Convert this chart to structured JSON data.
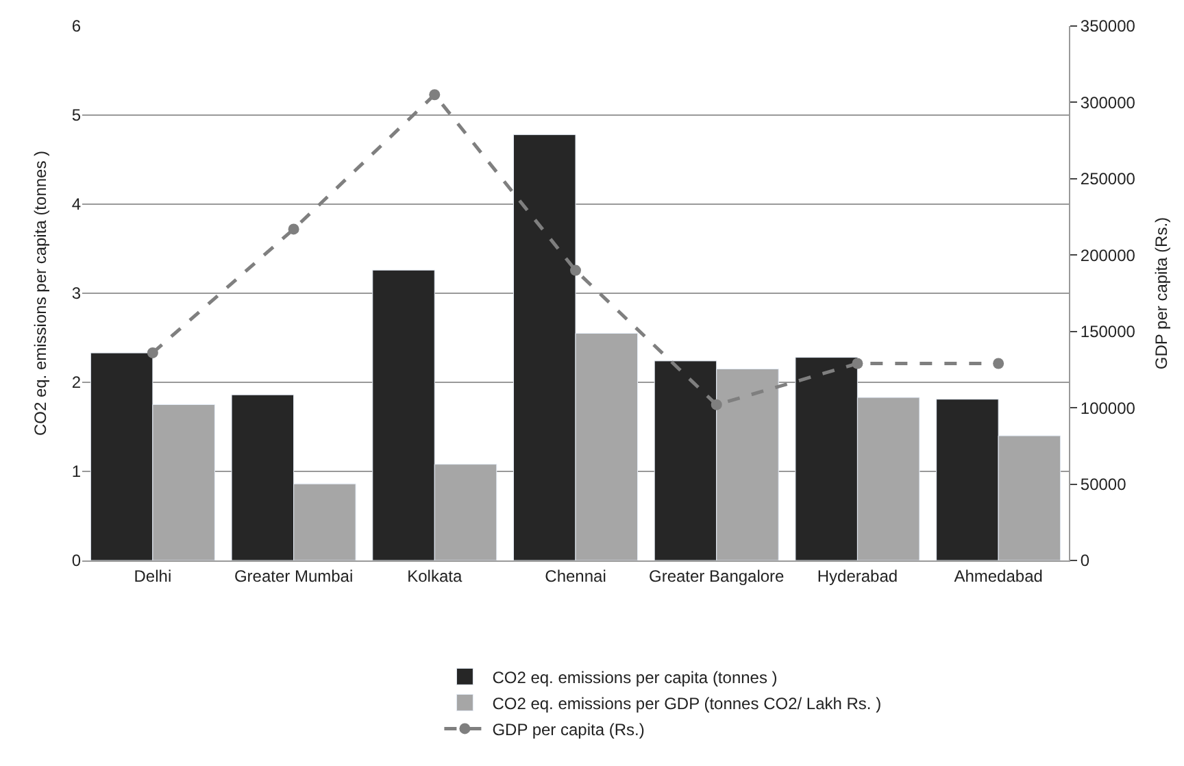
{
  "chart_data": {
    "type": "bar",
    "categories": [
      "Delhi",
      "Greater Mumbai",
      "Kolkata",
      "Chennai",
      "Greater Bangalore",
      "Hyderabad",
      "Ahmedabad"
    ],
    "ylabel": "CO2 eq. emissions per capita (tonnes )",
    "y2label": "GDP per capita (Rs.)",
    "ylim": [
      0,
      6
    ],
    "yticks": [
      0,
      1,
      2,
      3,
      4,
      5,
      6
    ],
    "y2lim": [
      0,
      350000
    ],
    "y2ticks": [
      0,
      50000,
      100000,
      150000,
      200000,
      250000,
      300000,
      350000
    ],
    "grid": "y",
    "legend": "bottom",
    "series": [
      {
        "name": "CO2 eq. emissions per capita (tonnes )",
        "color": "#262626",
        "values": [
          2.33,
          1.86,
          3.26,
          4.78,
          2.24,
          2.28,
          1.81
        ]
      },
      {
        "name": "CO2 eq. emissions per GDP (tonnes CO2/ Lakh Rs. )",
        "color": "#a6a6a6",
        "values": [
          1.75,
          0.86,
          1.08,
          2.55,
          2.15,
          1.83,
          1.4
        ]
      },
      {
        "name": "GDP per capita (Rs.)",
        "type": "line",
        "axis": "y2",
        "color": "#7f7f7f",
        "marker": "circle",
        "line_style": "dashed",
        "values": [
          136000,
          217000,
          305000,
          190000,
          102000,
          129000,
          129000
        ]
      }
    ]
  }
}
